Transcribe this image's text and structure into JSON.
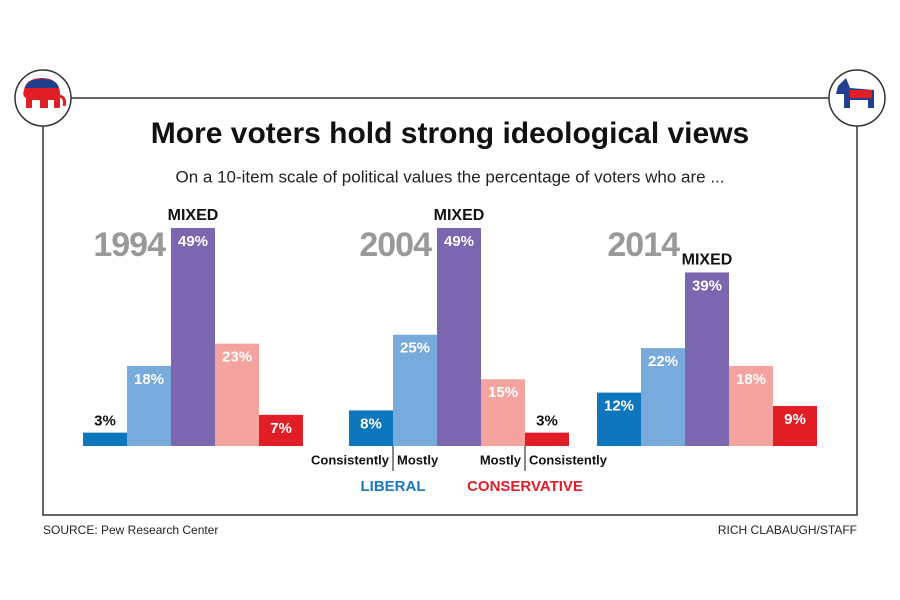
{
  "title": "More voters hold strong ideological views",
  "subtitle": "On a 10-item scale of political values the percentage of voters who are ...",
  "source": "SOURCE: Pew Research Center",
  "credit": "RICH CLABAUGH/STAFF",
  "chart_data": [
    {
      "type": "bar",
      "title": "1994",
      "categories": [
        null,
        null,
        "MIXED",
        null,
        null
      ],
      "values": [
        3,
        18,
        49,
        23,
        7
      ],
      "value_labels": [
        "3%",
        "18%",
        "49%",
        "23%",
        "7%"
      ],
      "colors": [
        "#0e76bd",
        "#78aadc",
        "#7a67b0",
        "#f4a39f",
        "#e11d25"
      ]
    },
    {
      "type": "bar",
      "title": "2004",
      "categories": [
        "Consistently",
        "Mostly",
        "MIXED",
        "Mostly",
        "Consistently"
      ],
      "values": [
        8,
        25,
        49,
        15,
        3
      ],
      "value_labels": [
        "8%",
        "25%",
        "49%",
        "15%",
        "3%"
      ],
      "colors": [
        "#0e76bd",
        "#78aadc",
        "#7a67b0",
        "#f4a39f",
        "#e11d25"
      ],
      "groups": [
        {
          "label": "LIBERAL",
          "color": "#1a78c2"
        },
        {
          "label": "CONSERVATIVE",
          "color": "#e11d25"
        }
      ]
    },
    {
      "type": "bar",
      "title": "2014",
      "categories": [
        null,
        null,
        "MIXED",
        null,
        null
      ],
      "values": [
        12,
        22,
        39,
        18,
        9
      ],
      "value_labels": [
        "12%",
        "22%",
        "39%",
        "18%",
        "9%"
      ],
      "colors": [
        "#0e76bd",
        "#78aadc",
        "#7a67b0",
        "#f4a39f",
        "#e11d25"
      ]
    }
  ]
}
